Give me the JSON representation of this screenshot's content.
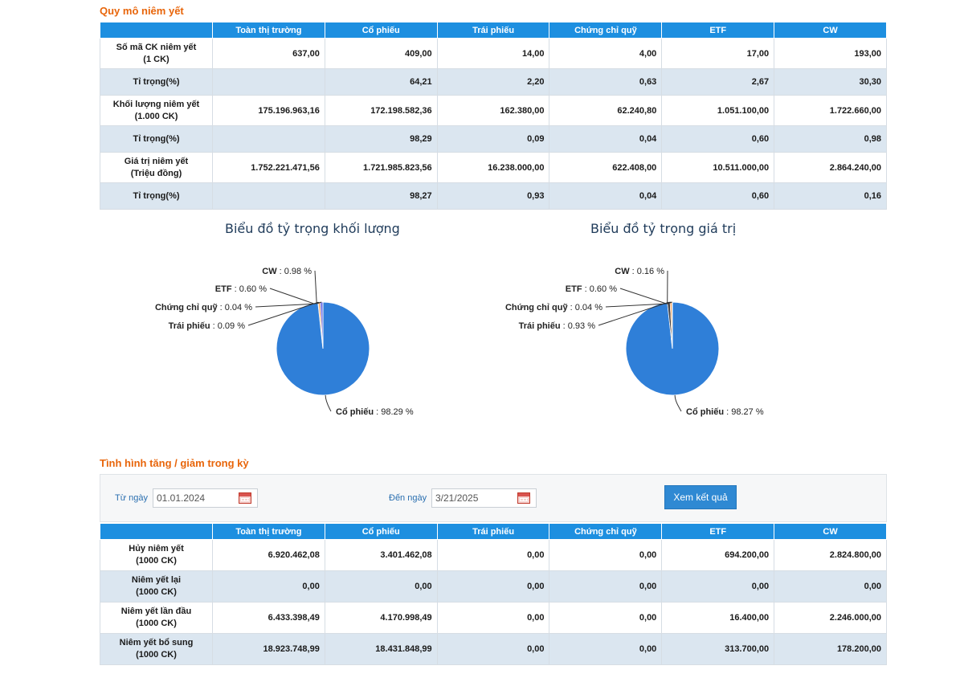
{
  "section1": {
    "title": "Quy mô niêm yết"
  },
  "table1": {
    "headers": [
      "",
      "Toàn thị trường",
      "Cổ phiếu",
      "Trái phiếu",
      "Chứng chỉ quỹ",
      "ETF",
      "CW"
    ],
    "rows": [
      {
        "label": [
          "Số mã CK niêm yết",
          "(1 CK)"
        ],
        "values": [
          "637,00",
          "409,00",
          "14,00",
          "4,00",
          "17,00",
          "193,00"
        ]
      },
      {
        "label": [
          "Tỉ trọng(%)"
        ],
        "values": [
          "",
          "64,21",
          "2,20",
          "0,63",
          "2,67",
          "30,30"
        ]
      },
      {
        "label": [
          "Khối lượng niêm yết",
          "(1.000 CK)"
        ],
        "values": [
          "175.196.963,16",
          "172.198.582,36",
          "162.380,00",
          "62.240,80",
          "1.051.100,00",
          "1.722.660,00"
        ]
      },
      {
        "label": [
          "Tỉ trọng(%)"
        ],
        "values": [
          "",
          "98,29",
          "0,09",
          "0,04",
          "0,60",
          "0,98"
        ]
      },
      {
        "label": [
          "Giá trị niêm yết",
          "(Triệu đồng)"
        ],
        "values": [
          "1.752.221.471,56",
          "1.721.985.823,56",
          "16.238.000,00",
          "622.408,00",
          "10.511.000,00",
          "2.864.240,00"
        ]
      },
      {
        "label": [
          "Tỉ trọng(%)"
        ],
        "values": [
          "",
          "98,27",
          "0,93",
          "0,04",
          "0,60",
          "0,16"
        ]
      }
    ]
  },
  "chart_data": [
    {
      "type": "pie",
      "title": "Biểu đồ tỷ trọng khối lượng",
      "slices": [
        {
          "name": "Cổ phiếu",
          "value": 98.29,
          "label": "98.29 %"
        },
        {
          "name": "Trái phiếu",
          "value": 0.09,
          "label": "0.09 %"
        },
        {
          "name": "Chứng chỉ quỹ",
          "value": 0.04,
          "label": "0.04 %"
        },
        {
          "name": "ETF",
          "value": 0.6,
          "label": "0.60 %"
        },
        {
          "name": "CW",
          "value": 0.98,
          "label": "0.98 %"
        }
      ],
      "colors": [
        "#2f7fd8",
        "#434348",
        "#90ed7d",
        "#f7a35c",
        "#8085e9"
      ]
    },
    {
      "type": "pie",
      "title": "Biểu đồ tỷ trọng giá trị",
      "slices": [
        {
          "name": "Cổ phiếu",
          "value": 98.27,
          "label": "98.27 %"
        },
        {
          "name": "Trái phiếu",
          "value": 0.93,
          "label": "0.93 %"
        },
        {
          "name": "Chứng chỉ quỹ",
          "value": 0.04,
          "label": "0.04 %"
        },
        {
          "name": "ETF",
          "value": 0.6,
          "label": "0.60 %"
        },
        {
          "name": "CW",
          "value": 0.16,
          "label": "0.16 %"
        }
      ],
      "colors": [
        "#2f7fd8",
        "#434348",
        "#90ed7d",
        "#f7a35c",
        "#8085e9"
      ]
    }
  ],
  "section2": {
    "title": "Tình hình tăng / giảm trong kỳ"
  },
  "filter": {
    "from_label": "Từ ngày",
    "from_value": "01.01.2024",
    "to_label": "Đến ngày",
    "to_value": "3/21/2025",
    "submit_label": "Xem kết quả"
  },
  "table2": {
    "headers": [
      "",
      "Toàn thị trường",
      "Cổ phiếu",
      "Trái phiếu",
      "Chứng chỉ quỹ",
      "ETF",
      "CW"
    ],
    "rows": [
      {
        "label": [
          "Hủy niêm yết",
          "(1000 CK)"
        ],
        "values": [
          "6.920.462,08",
          "3.401.462,08",
          "0,00",
          "0,00",
          "694.200,00",
          "2.824.800,00"
        ]
      },
      {
        "label": [
          "Niêm yết lại",
          "(1000 CK)"
        ],
        "values": [
          "0,00",
          "0,00",
          "0,00",
          "0,00",
          "0,00",
          "0,00"
        ]
      },
      {
        "label": [
          "Niêm yết lần đầu",
          "(1000 CK)"
        ],
        "values": [
          "6.433.398,49",
          "4.170.998,49",
          "0,00",
          "0,00",
          "16.400,00",
          "2.246.000,00"
        ]
      },
      {
        "label": [
          "Niêm yết bổ sung",
          "(1000 CK)"
        ],
        "values": [
          "18.923.748,99",
          "18.431.848,99",
          "0,00",
          "0,00",
          "313.700,00",
          "178.200,00"
        ]
      }
    ]
  }
}
